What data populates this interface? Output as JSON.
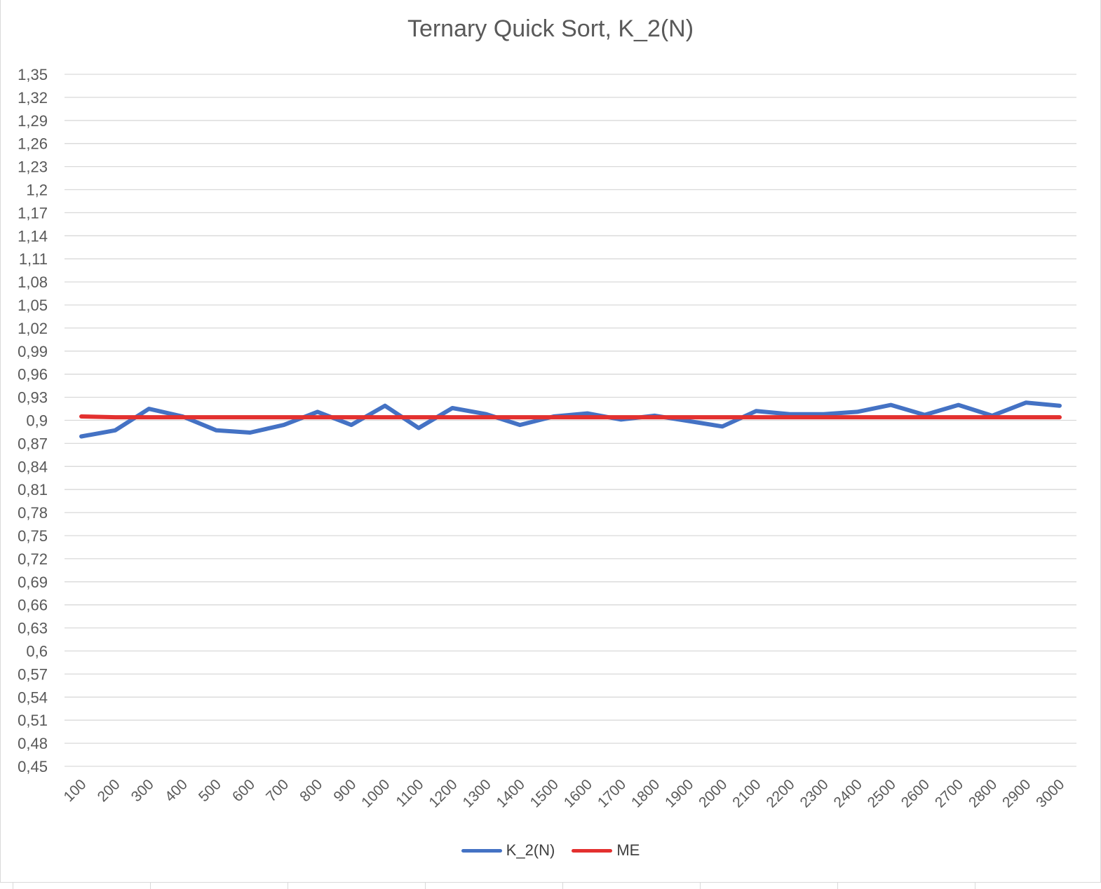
{
  "chart_data": {
    "type": "line",
    "title": "Ternary Quick Sort, K_2(N)",
    "xlabel": "",
    "ylabel": "",
    "ylim": [
      0.45,
      1.35
    ],
    "y_ticks": [
      "1,35",
      "1,32",
      "1,29",
      "1,26",
      "1,23",
      "1,2",
      "1,17",
      "1,14",
      "1,11",
      "1,08",
      "1,05",
      "1,02",
      "0,99",
      "0,96",
      "0,93",
      "0,9",
      "0,87",
      "0,84",
      "0,81",
      "0,78",
      "0,75",
      "0,72",
      "0,69",
      "0,66",
      "0,63",
      "0,6",
      "0,57",
      "0,54",
      "0,51",
      "0,48",
      "0,45"
    ],
    "categories": [
      "100",
      "200",
      "300",
      "400",
      "500",
      "600",
      "700",
      "800",
      "900",
      "1000",
      "1100",
      "1200",
      "1300",
      "1400",
      "1500",
      "1600",
      "1700",
      "1800",
      "1900",
      "2000",
      "2100",
      "2200",
      "2300",
      "2400",
      "2500",
      "2600",
      "2700",
      "2800",
      "2900",
      "3000"
    ],
    "grid": true,
    "legend_position": "bottom",
    "series": [
      {
        "name": "K_2(N)",
        "color": "#4472c4",
        "values": [
          0.879,
          0.887,
          0.915,
          0.905,
          0.887,
          0.884,
          0.894,
          0.911,
          0.894,
          0.919,
          0.89,
          0.916,
          0.908,
          0.894,
          0.905,
          0.909,
          0.901,
          0.906,
          0.899,
          0.892,
          0.912,
          0.908,
          0.908,
          0.911,
          0.92,
          0.907,
          0.92,
          0.906,
          0.923,
          0.919
        ]
      },
      {
        "name": "ME",
        "color": "#e3302f",
        "values": [
          0.905,
          0.904,
          0.904,
          0.904,
          0.904,
          0.904,
          0.904,
          0.904,
          0.904,
          0.904,
          0.904,
          0.904,
          0.904,
          0.904,
          0.904,
          0.904,
          0.904,
          0.904,
          0.904,
          0.904,
          0.904,
          0.904,
          0.904,
          0.904,
          0.904,
          0.904,
          0.904,
          0.904,
          0.904,
          0.904
        ]
      }
    ]
  }
}
